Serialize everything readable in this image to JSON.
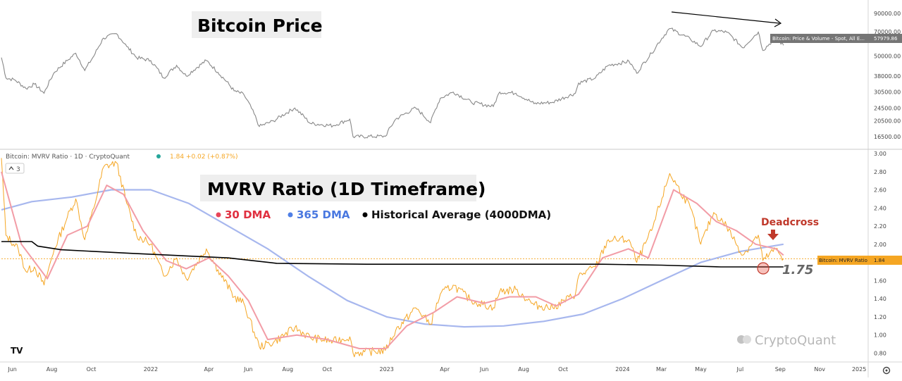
{
  "header": {
    "indicator_title": "Bitcoin: MVRV Ratio · 1D · CryptoQuant",
    "value_readout": "1.84 +0.02 (+0.87%)",
    "layer_count": "3"
  },
  "titles": {
    "price_panel": "Bitcoin Price",
    "mvrv_panel": "MVRV Ratio (1D Timeframe)"
  },
  "legend": [
    {
      "label": "30 DMA",
      "color": "#e8455a",
      "text_color": "#e03040"
    },
    {
      "label": "365 DMA",
      "color": "#4f7fe6",
      "text_color": "#4a78e0"
    },
    {
      "label": "Historical Average (4000DMA)",
      "color": "#000000",
      "text_color": "#111111"
    }
  ],
  "annotations": {
    "deadcross": "Deadcross",
    "average_value": "1.75",
    "watermark": "CryptoQuant"
  },
  "price_tag": {
    "label": "Bitcoin: Price & Volume - Spot, All E...",
    "value": "57979.86"
  },
  "mvrv_tag": {
    "label": "Bitcoin: MVRV Ratio",
    "value": "1.84"
  },
  "colors": {
    "price_line": "#888888",
    "mvrv_line": "#f5a623",
    "dma30": "#f29ca6",
    "dma365": "#a7b7ee",
    "dma4000": "#000000",
    "deadcross": "#c0392b",
    "tag_bg_orange": "#f5a623"
  },
  "chart_data": [
    {
      "type": "line",
      "title": "Bitcoin Price",
      "y_scale": "log",
      "y_ticks": [
        90000,
        70000,
        50000,
        38000,
        30500,
        24500,
        20500,
        16500
      ],
      "y_tick_labels": [
        "90000.00",
        "70000.00",
        "50000.00",
        "38000.00",
        "30500.00",
        "24500.00",
        "20500.00",
        "16500.00"
      ],
      "x_ticks": [
        "Jun",
        "Aug",
        "Oct",
        "2022",
        "Apr",
        "Jun",
        "Aug",
        "Oct",
        "2023",
        "Apr",
        "Jun",
        "Aug",
        "Oct",
        "2024",
        "Mar",
        "May",
        "Jul",
        "Sep",
        "Nov",
        "2025"
      ],
      "x_range": [
        "2021-05-15",
        "2025-01-15"
      ],
      "series": [
        {
          "name": "Bitcoin: Price & Volume - Spot, All E...",
          "points": [
            [
              "2021-05-15",
              49000
            ],
            [
              "2021-05-22",
              37000
            ],
            [
              "2021-06-05",
              36000
            ],
            [
              "2021-06-22",
              32000
            ],
            [
              "2021-07-05",
              34000
            ],
            [
              "2021-07-20",
              30000
            ],
            [
              "2021-08-05",
              40000
            ],
            [
              "2021-08-25",
              47000
            ],
            [
              "2021-09-07",
              52000
            ],
            [
              "2021-09-21",
              41000
            ],
            [
              "2021-10-05",
              50000
            ],
            [
              "2021-10-20",
              64000
            ],
            [
              "2021-11-09",
              68000
            ],
            [
              "2021-11-25",
              57000
            ],
            [
              "2021-12-10",
              49000
            ],
            [
              "2022-01-01",
              47000
            ],
            [
              "2022-01-21",
              37000
            ],
            [
              "2022-02-10",
              44000
            ],
            [
              "2022-02-25",
              38000
            ],
            [
              "2022-03-28",
              47000
            ],
            [
              "2022-04-15",
              40000
            ],
            [
              "2022-05-10",
              31000
            ],
            [
              "2022-05-25",
              29500
            ],
            [
              "2022-06-18",
              19000
            ],
            [
              "2022-07-10",
              20500
            ],
            [
              "2022-08-12",
              24500
            ],
            [
              "2022-09-05",
              19800
            ],
            [
              "2022-10-10",
              19200
            ],
            [
              "2022-11-05",
              21000
            ],
            [
              "2022-11-10",
              16500
            ],
            [
              "2022-12-30",
              16600
            ],
            [
              "2023-01-15",
              21000
            ],
            [
              "2023-02-15",
              24500
            ],
            [
              "2023-03-10",
              20000
            ],
            [
              "2023-03-25",
              28000
            ],
            [
              "2023-04-14",
              30500
            ],
            [
              "2023-05-12",
              26500
            ],
            [
              "2023-06-15",
              25000
            ],
            [
              "2023-06-25",
              30500
            ],
            [
              "2023-07-20",
              30000
            ],
            [
              "2023-08-17",
              26000
            ],
            [
              "2023-09-15",
              26500
            ],
            [
              "2023-10-20",
              30000
            ],
            [
              "2023-10-25",
              34500
            ],
            [
              "2023-11-20",
              37000
            ],
            [
              "2023-12-10",
              44000
            ],
            [
              "2024-01-11",
              46500
            ],
            [
              "2024-01-23",
              39500
            ],
            [
              "2024-02-15",
              52000
            ],
            [
              "2024-03-14",
              73000
            ],
            [
              "2024-04-15",
              63000
            ],
            [
              "2024-05-01",
              57000
            ],
            [
              "2024-05-21",
              71000
            ],
            [
              "2024-06-10",
              69500
            ],
            [
              "2024-07-05",
              56000
            ],
            [
              "2024-07-29",
              69500
            ],
            [
              "2024-08-05",
              54000
            ],
            [
              "2024-08-25",
              64000
            ],
            [
              "2024-09-06",
              57979.86
            ]
          ]
        }
      ]
    },
    {
      "type": "line",
      "title": "MVRV Ratio (1D Timeframe)",
      "y_ticks": [
        3.0,
        2.8,
        2.6,
        2.4,
        2.2,
        2.0,
        1.8,
        1.6,
        1.4,
        1.2,
        1.0,
        0.8
      ],
      "y_tick_labels": [
        "3.00",
        "2.80",
        "2.60",
        "2.40",
        "2.20",
        "2.00",
        "1.80",
        "1.60",
        "1.40",
        "1.20",
        "1.00",
        "0.80"
      ],
      "ylim": [
        0.78,
        3.0
      ],
      "x_ticks": [
        "Jun",
        "Aug",
        "Oct",
        "2022",
        "Apr",
        "Jun",
        "Aug",
        "Oct",
        "2023",
        "Apr",
        "Jun",
        "Aug",
        "Oct",
        "2024",
        "Mar",
        "May",
        "Jul",
        "Sep",
        "Nov",
        "2025"
      ],
      "x_range": [
        "2021-05-15",
        "2025-01-15"
      ],
      "series": [
        {
          "name": "Bitcoin: MVRV Ratio",
          "points": [
            [
              "2021-05-15",
              2.95
            ],
            [
              "2021-05-22",
              2.1
            ],
            [
              "2021-06-10",
              1.95
            ],
            [
              "2021-06-22",
              1.7
            ],
            [
              "2021-07-05",
              1.75
            ],
            [
              "2021-07-20",
              1.55
            ],
            [
              "2021-08-05",
              1.95
            ],
            [
              "2021-08-25",
              2.3
            ],
            [
              "2021-09-07",
              2.5
            ],
            [
              "2021-09-21",
              2.05
            ],
            [
              "2021-10-05",
              2.4
            ],
            [
              "2021-10-20",
              2.85
            ],
            [
              "2021-11-09",
              2.9
            ],
            [
              "2021-11-25",
              2.45
            ],
            [
              "2021-12-10",
              2.1
            ],
            [
              "2022-01-01",
              2.0
            ],
            [
              "2022-01-21",
              1.65
            ],
            [
              "2022-02-10",
              1.85
            ],
            [
              "2022-02-25",
              1.62
            ],
            [
              "2022-03-28",
              1.95
            ],
            [
              "2022-04-15",
              1.72
            ],
            [
              "2022-05-10",
              1.42
            ],
            [
              "2022-05-25",
              1.35
            ],
            [
              "2022-06-18",
              0.87
            ],
            [
              "2022-07-10",
              0.92
            ],
            [
              "2022-08-12",
              1.08
            ],
            [
              "2022-09-05",
              0.97
            ],
            [
              "2022-10-10",
              0.93
            ],
            [
              "2022-11-05",
              0.98
            ],
            [
              "2022-11-10",
              0.8
            ],
            [
              "2022-12-30",
              0.83
            ],
            [
              "2023-01-15",
              1.05
            ],
            [
              "2023-02-15",
              1.3
            ],
            [
              "2023-03-10",
              1.12
            ],
            [
              "2023-03-25",
              1.45
            ],
            [
              "2023-04-14",
              1.55
            ],
            [
              "2023-05-12",
              1.38
            ],
            [
              "2023-06-15",
              1.3
            ],
            [
              "2023-06-25",
              1.48
            ],
            [
              "2023-07-20",
              1.5
            ],
            [
              "2023-08-17",
              1.33
            ],
            [
              "2023-09-15",
              1.3
            ],
            [
              "2023-10-20",
              1.45
            ],
            [
              "2023-10-25",
              1.65
            ],
            [
              "2023-11-20",
              1.75
            ],
            [
              "2023-12-10",
              2.05
            ],
            [
              "2024-01-11",
              2.05
            ],
            [
              "2024-01-23",
              1.8
            ],
            [
              "2024-02-15",
              2.15
            ],
            [
              "2024-03-14",
              2.78
            ],
            [
              "2024-04-15",
              2.4
            ],
            [
              "2024-05-01",
              2.0
            ],
            [
              "2024-05-21",
              2.35
            ],
            [
              "2024-06-10",
              2.2
            ],
            [
              "2024-07-05",
              1.88
            ],
            [
              "2024-07-29",
              2.1
            ],
            [
              "2024-08-05",
              1.82
            ],
            [
              "2024-08-25",
              1.95
            ],
            [
              "2024-09-06",
              1.84
            ]
          ]
        },
        {
          "name": "30 DMA",
          "points": [
            [
              "2021-05-15",
              2.8
            ],
            [
              "2021-06-15",
              2.0
            ],
            [
              "2021-07-25",
              1.62
            ],
            [
              "2021-08-25",
              2.1
            ],
            [
              "2021-09-25",
              2.2
            ],
            [
              "2021-10-25",
              2.65
            ],
            [
              "2021-11-20",
              2.55
            ],
            [
              "2021-12-20",
              2.15
            ],
            [
              "2022-01-25",
              1.82
            ],
            [
              "2022-02-25",
              1.73
            ],
            [
              "2022-04-01",
              1.85
            ],
            [
              "2022-05-01",
              1.65
            ],
            [
              "2022-06-01",
              1.38
            ],
            [
              "2022-07-01",
              0.95
            ],
            [
              "2022-08-15",
              1.0
            ],
            [
              "2022-10-01",
              0.95
            ],
            [
              "2022-11-20",
              0.85
            ],
            [
              "2022-12-31",
              0.85
            ],
            [
              "2023-02-01",
              1.1
            ],
            [
              "2023-03-15",
              1.25
            ],
            [
              "2023-04-20",
              1.42
            ],
            [
              "2023-06-01",
              1.35
            ],
            [
              "2023-07-10",
              1.42
            ],
            [
              "2023-08-20",
              1.42
            ],
            [
              "2023-09-20",
              1.32
            ],
            [
              "2023-10-25",
              1.45
            ],
            [
              "2023-12-01",
              1.85
            ],
            [
              "2024-01-10",
              1.95
            ],
            [
              "2024-02-10",
              1.85
            ],
            [
              "2024-03-20",
              2.6
            ],
            [
              "2024-04-25",
              2.45
            ],
            [
              "2024-05-25",
              2.25
            ],
            [
              "2024-06-25",
              2.15
            ],
            [
              "2024-07-25",
              2.0
            ],
            [
              "2024-08-25",
              1.95
            ],
            [
              "2024-09-06",
              1.88
            ]
          ]
        },
        {
          "name": "365 DMA",
          "points": [
            [
              "2021-05-15",
              2.38
            ],
            [
              "2021-07-01",
              2.47
            ],
            [
              "2021-09-01",
              2.52
            ],
            [
              "2021-11-01",
              2.6
            ],
            [
              "2022-01-01",
              2.6
            ],
            [
              "2022-03-01",
              2.45
            ],
            [
              "2022-05-01",
              2.2
            ],
            [
              "2022-07-01",
              1.95
            ],
            [
              "2022-09-01",
              1.65
            ],
            [
              "2022-11-01",
              1.38
            ],
            [
              "2023-01-01",
              1.2
            ],
            [
              "2023-03-01",
              1.12
            ],
            [
              "2023-05-01",
              1.09
            ],
            [
              "2023-07-01",
              1.1
            ],
            [
              "2023-09-01",
              1.15
            ],
            [
              "2023-11-01",
              1.23
            ],
            [
              "2024-01-01",
              1.4
            ],
            [
              "2024-03-01",
              1.6
            ],
            [
              "2024-05-01",
              1.8
            ],
            [
              "2024-07-01",
              1.92
            ],
            [
              "2024-09-06",
              2.0
            ]
          ]
        },
        {
          "name": "Historical Average (4000DMA)",
          "points": [
            [
              "2021-05-15",
              2.03
            ],
            [
              "2021-07-01",
              2.03
            ],
            [
              "2021-07-10",
              1.98
            ],
            [
              "2021-08-15",
              1.94
            ],
            [
              "2021-12-01",
              1.9
            ],
            [
              "2022-05-01",
              1.85
            ],
            [
              "2022-07-15",
              1.79
            ],
            [
              "2022-12-01",
              1.78
            ],
            [
              "2023-06-01",
              1.78
            ],
            [
              "2023-12-01",
              1.78
            ],
            [
              "2024-03-01",
              1.77
            ],
            [
              "2024-06-01",
              1.75
            ],
            [
              "2024-09-06",
              1.75
            ]
          ]
        }
      ]
    }
  ]
}
